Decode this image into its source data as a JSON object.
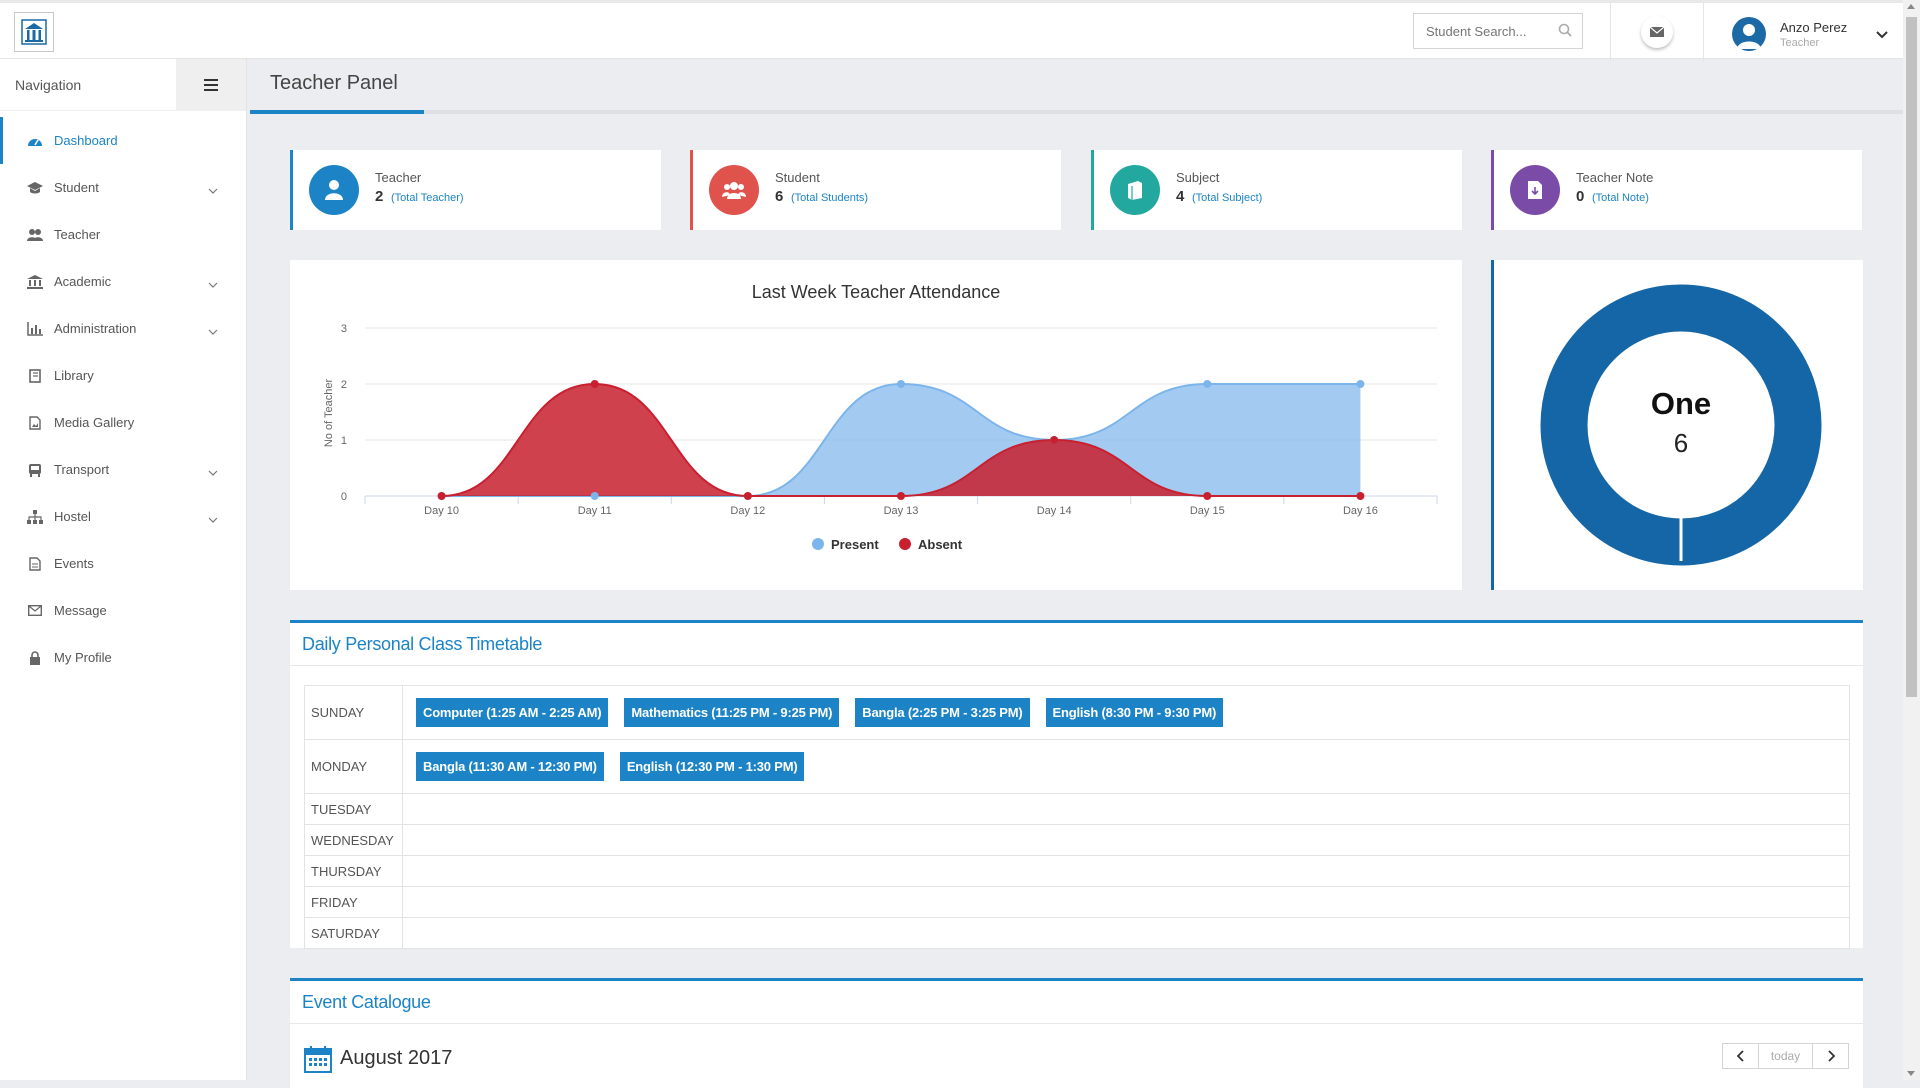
{
  "header": {
    "search_placeholder": "Student Search...",
    "user_name": "Anzo Perez",
    "user_role": "Teacher"
  },
  "sidebar": {
    "title": "Navigation",
    "items": [
      {
        "label": "Dashboard",
        "icon": "dashboard-icon",
        "active": true,
        "expandable": false
      },
      {
        "label": "Student",
        "icon": "student-icon",
        "active": false,
        "expandable": true
      },
      {
        "label": "Teacher",
        "icon": "teacher-icon",
        "active": false,
        "expandable": false
      },
      {
        "label": "Academic",
        "icon": "academic-icon",
        "active": false,
        "expandable": true
      },
      {
        "label": "Administration",
        "icon": "administration-icon",
        "active": false,
        "expandable": true
      },
      {
        "label": "Library",
        "icon": "library-icon",
        "active": false,
        "expandable": false
      },
      {
        "label": "Media Gallery",
        "icon": "media-gallery-icon",
        "active": false,
        "expandable": false
      },
      {
        "label": "Transport",
        "icon": "transport-icon",
        "active": false,
        "expandable": true
      },
      {
        "label": "Hostel",
        "icon": "hostel-icon",
        "active": false,
        "expandable": true
      },
      {
        "label": "Events",
        "icon": "events-icon",
        "active": false,
        "expandable": false
      },
      {
        "label": "Message",
        "icon": "message-icon",
        "active": false,
        "expandable": false
      },
      {
        "label": "My Profile",
        "icon": "lock-icon",
        "active": false,
        "expandable": false
      }
    ]
  },
  "panel": {
    "title": "Teacher Panel"
  },
  "stats": [
    {
      "label": "Teacher",
      "value": "2",
      "sub": "(Total Teacher)",
      "color": "#1c84c6",
      "icon": "user-icon"
    },
    {
      "label": "Student",
      "value": "6",
      "sub": "(Total Students)",
      "color": "#e0524c",
      "icon": "users-icon"
    },
    {
      "label": "Subject",
      "value": "4",
      "sub": "(Total Subject)",
      "color": "#23a8a0",
      "icon": "book-icon"
    },
    {
      "label": "Teacher Note",
      "value": "0",
      "sub": "(Total Note)",
      "color": "#7b4ba8",
      "icon": "note-icon"
    }
  ],
  "chart_data": {
    "type": "area",
    "title": "Last Week Teacher Attendance",
    "ylabel": "No of Teacher",
    "xlabel": "",
    "categories": [
      "Day 10",
      "Day 11",
      "Day 12",
      "Day 13",
      "Day 14",
      "Day 15",
      "Day 16"
    ],
    "ylim": [
      0,
      3
    ],
    "yticks": [
      0,
      1,
      2,
      3
    ],
    "grid": true,
    "legend": "bottom",
    "series": [
      {
        "name": "Present",
        "values": [
          0,
          0,
          0,
          2,
          1,
          2,
          2
        ],
        "color": "#7cb5ec"
      },
      {
        "name": "Absent",
        "values": [
          0,
          2,
          0,
          0,
          1,
          0,
          0
        ],
        "color": "#c8202f"
      }
    ]
  },
  "donut": {
    "label": "One",
    "value": "6",
    "color": "#1566a6"
  },
  "timetable": {
    "title": "Daily Personal Class Timetable",
    "days": [
      {
        "day": "SUNDAY",
        "classes": [
          "Computer (1:25 AM - 2:25 AM)",
          "Mathematics (11:25 PM - 9:25 PM)",
          "Bangla (2:25 PM - 3:25 PM)",
          "English (8:30 PM - 9:30 PM)"
        ]
      },
      {
        "day": "MONDAY",
        "classes": [
          "Bangla (11:30 AM - 12:30 PM)",
          "English (12:30 PM - 1:30 PM)"
        ]
      },
      {
        "day": "TUESDAY",
        "classes": []
      },
      {
        "day": "WEDNESDAY",
        "classes": []
      },
      {
        "day": "THURSDAY",
        "classes": []
      },
      {
        "day": "FRIDAY",
        "classes": []
      },
      {
        "day": "SATURDAY",
        "classes": []
      }
    ]
  },
  "events": {
    "title": "Event Catalogue",
    "month": "August 2017",
    "today_label": "today"
  }
}
